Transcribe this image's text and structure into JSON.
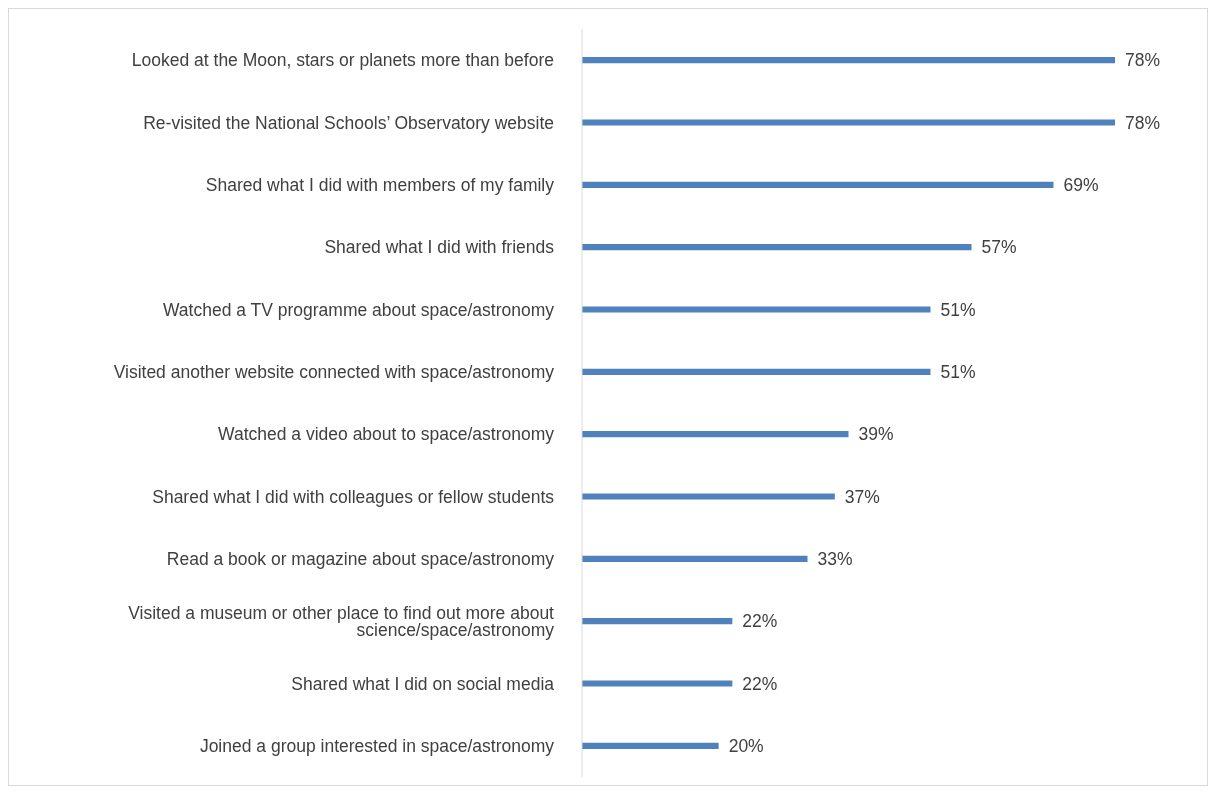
{
  "chart_data": {
    "type": "bar",
    "orientation": "horizontal",
    "categories": [
      "Looked at the Moon, stars or planets more than before",
      "Re-visited the National Schools’ Observatory website",
      "Shared what I did with members of my family",
      "Shared what I did with friends",
      "Watched a TV programme about space/astronomy",
      "Visited another website connected with space/astronomy",
      "Watched a video about to space/astronomy",
      "Shared what I did with colleagues or fellow students",
      "Read a book or magazine about space/astronomy",
      "Visited a museum or other place to find out more about science/space/astronomy",
      "Shared what I did on social media",
      "Joined a group interested in space/astronomy"
    ],
    "values": [
      78,
      78,
      69,
      57,
      51,
      51,
      39,
      37,
      33,
      22,
      22,
      20
    ],
    "value_labels": [
      "78%",
      "78%",
      "69%",
      "57%",
      "51%",
      "51%",
      "39%",
      "37%",
      "33%",
      "22%",
      "22%",
      "20%"
    ],
    "color": "#4f81bd",
    "grid": false,
    "legend": false
  }
}
